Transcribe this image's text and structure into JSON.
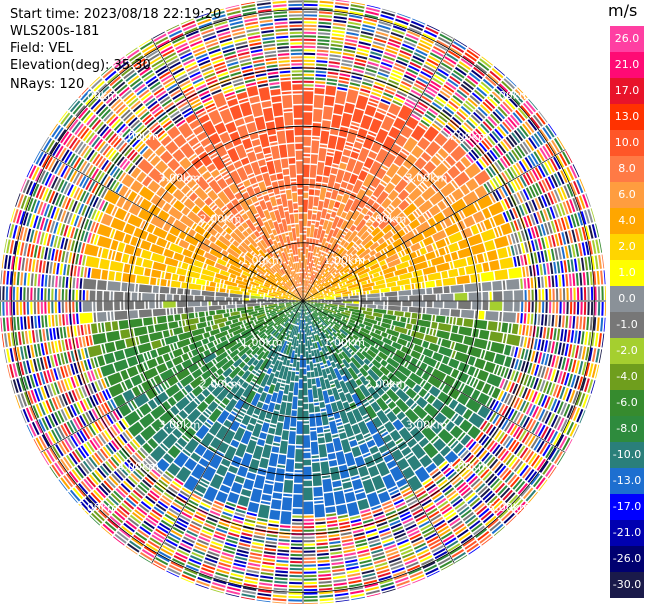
{
  "info": {
    "start_time": "Start time: 2023/08/18 22:19:20",
    "instrument": "WLS200s-181",
    "field": "Field: VEL",
    "elevation": "Elevation(deg): 35.30",
    "nrays": "NRays: 120"
  },
  "chart_data": {
    "type": "polar_ppi",
    "field": "VEL",
    "units": "m/s",
    "n_rays": 120,
    "range_rings_km": [
      1.0,
      2.0,
      3.0,
      4.0,
      5.0
    ],
    "range_ring_labels": [
      "1.00km",
      "2.00km",
      "3.00km",
      "4.00km",
      "5.00km"
    ],
    "max_range_km": 5.2,
    "colorbar": {
      "unit_label": "m/s",
      "ticks": [
        "26.0",
        "21.0",
        "17.0",
        "13.0",
        "10.0",
        "8.0",
        "6.0",
        "4.0",
        "2.0",
        "1.0",
        "0.0",
        "-1.0",
        "-2.0",
        "-4.0",
        "-6.0",
        "-8.0",
        "-10.0",
        "-13.0",
        "-17.0",
        "-21.0",
        "-26.0",
        "-30.0"
      ],
      "colors": [
        "#ff3fa2",
        "#ff0a74",
        "#e8132a",
        "#ff3200",
        "#ff5628",
        "#ff7a45",
        "#ff9d3f",
        "#ffa600",
        "#ffd500",
        "#ffff00",
        "#8a9198",
        "#777777",
        "#a5cf2f",
        "#6f9e1d",
        "#368b2e",
        "#2e8b3d",
        "#2a7f7a",
        "#1d6fd0",
        "#0000ff",
        "#0000b0",
        "#000070",
        "#1a1a4a"
      ]
    },
    "wind_pattern": {
      "near_range_toward_north_ms": [
        2.0,
        10.0
      ],
      "near_range_toward_south_ms": [
        -10.0,
        -4.0
      ],
      "noise_beyond_km": 3.6
    }
  }
}
